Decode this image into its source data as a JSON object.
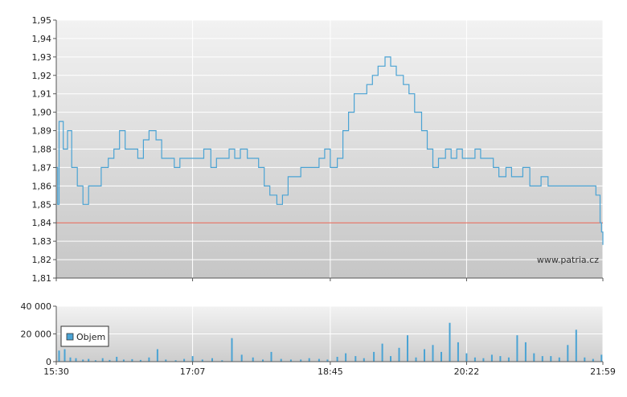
{
  "chart_data": [
    {
      "type": "line",
      "x_axis": {
        "range": [
          "15:30",
          "21:59"
        ]
      },
      "y_axis": {
        "ticks": [
          "1,81",
          "1,82",
          "1,83",
          "1,84",
          "1,85",
          "1,86",
          "1,87",
          "1,88",
          "1,89",
          "1,90",
          "1,91",
          "1,92",
          "1,93",
          "1,94",
          "1,95"
        ],
        "ylim": [
          1.81,
          1.95
        ]
      },
      "grid": true,
      "reference_line": {
        "value": 1.84,
        "color": "#e05a4a"
      },
      "watermark": "www.patria.cz",
      "series": [
        {
          "color": "#4aa3d4",
          "points": [
            [
              "15:30",
              1.87
            ],
            [
              "15:31",
              1.85
            ],
            [
              "15:32",
              1.895
            ],
            [
              "15:35",
              1.88
            ],
            [
              "15:38",
              1.89
            ],
            [
              "15:41",
              1.87
            ],
            [
              "15:45",
              1.86
            ],
            [
              "15:49",
              1.85
            ],
            [
              "15:53",
              1.86
            ],
            [
              "15:58",
              1.86
            ],
            [
              "16:02",
              1.87
            ],
            [
              "16:07",
              1.875
            ],
            [
              "16:11",
              1.88
            ],
            [
              "16:15",
              1.89
            ],
            [
              "16:19",
              1.88
            ],
            [
              "16:24",
              1.88
            ],
            [
              "16:28",
              1.875
            ],
            [
              "16:32",
              1.885
            ],
            [
              "16:36",
              1.89
            ],
            [
              "16:41",
              1.885
            ],
            [
              "16:45",
              1.875
            ],
            [
              "16:49",
              1.875
            ],
            [
              "16:54",
              1.87
            ],
            [
              "16:58",
              1.875
            ],
            [
              "17:02",
              1.875
            ],
            [
              "17:07",
              1.875
            ],
            [
              "17:11",
              1.875
            ],
            [
              "17:15",
              1.88
            ],
            [
              "17:20",
              1.87
            ],
            [
              "17:24",
              1.875
            ],
            [
              "17:28",
              1.875
            ],
            [
              "17:33",
              1.88
            ],
            [
              "17:37",
              1.875
            ],
            [
              "17:41",
              1.88
            ],
            [
              "17:46",
              1.875
            ],
            [
              "17:50",
              1.875
            ],
            [
              "17:54",
              1.87
            ],
            [
              "17:58",
              1.86
            ],
            [
              "18:02",
              1.855
            ],
            [
              "18:07",
              1.85
            ],
            [
              "18:11",
              1.855
            ],
            [
              "18:15",
              1.865
            ],
            [
              "18:19",
              1.865
            ],
            [
              "18:24",
              1.87
            ],
            [
              "18:28",
              1.87
            ],
            [
              "18:32",
              1.87
            ],
            [
              "18:37",
              1.875
            ],
            [
              "18:41",
              1.88
            ],
            [
              "18:45",
              1.87
            ],
            [
              "18:50",
              1.875
            ],
            [
              "18:54",
              1.89
            ],
            [
              "18:58",
              1.9
            ],
            [
              "19:02",
              1.91
            ],
            [
              "19:07",
              1.91
            ],
            [
              "19:11",
              1.915
            ],
            [
              "19:15",
              1.92
            ],
            [
              "19:19",
              1.925
            ],
            [
              "19:24",
              1.93
            ],
            [
              "19:28",
              1.925
            ],
            [
              "19:32",
              1.92
            ],
            [
              "19:37",
              1.915
            ],
            [
              "19:41",
              1.91
            ],
            [
              "19:45",
              1.9
            ],
            [
              "19:50",
              1.89
            ],
            [
              "19:54",
              1.88
            ],
            [
              "19:58",
              1.87
            ],
            [
              "20:02",
              1.875
            ],
            [
              "20:07",
              1.88
            ],
            [
              "20:11",
              1.875
            ],
            [
              "20:15",
              1.88
            ],
            [
              "20:19",
              1.875
            ],
            [
              "20:24",
              1.875
            ],
            [
              "20:28",
              1.88
            ],
            [
              "20:32",
              1.875
            ],
            [
              "20:37",
              1.875
            ],
            [
              "20:41",
              1.87
            ],
            [
              "20:45",
              1.865
            ],
            [
              "20:50",
              1.87
            ],
            [
              "20:54",
              1.865
            ],
            [
              "20:58",
              1.865
            ],
            [
              "21:02",
              1.87
            ],
            [
              "21:07",
              1.86
            ],
            [
              "21:11",
              1.86
            ],
            [
              "21:15",
              1.865
            ],
            [
              "21:20",
              1.86
            ],
            [
              "21:24",
              1.86
            ],
            [
              "21:28",
              1.86
            ],
            [
              "21:33",
              1.86
            ],
            [
              "21:37",
              1.86
            ],
            [
              "21:41",
              1.86
            ],
            [
              "21:46",
              1.86
            ],
            [
              "21:50",
              1.86
            ],
            [
              "21:54",
              1.855
            ],
            [
              "21:57",
              1.84
            ],
            [
              "21:58",
              1.835
            ],
            [
              "21:59",
              1.828
            ]
          ]
        }
      ]
    },
    {
      "type": "bar",
      "x_axis": {
        "ticks": [
          "15:30",
          "17:07",
          "18:45",
          "20:22",
          "21:59"
        ],
        "range": [
          "15:30",
          "21:59"
        ]
      },
      "y_axis": {
        "ticks": [
          "0",
          "20 000",
          "40 000"
        ],
        "ylim": [
          0,
          40000
        ]
      },
      "grid": true,
      "legend": {
        "position": "top-left",
        "label": "Objem",
        "swatch": "#4aa3d4"
      },
      "series": [
        {
          "name": "Objem",
          "color": "#4aa3d4",
          "points": [
            [
              "15:32",
              8000
            ],
            [
              "15:36",
              9000
            ],
            [
              "15:40",
              3000
            ],
            [
              "15:44",
              2500
            ],
            [
              "15:49",
              1500
            ],
            [
              "15:53",
              2000
            ],
            [
              "15:58",
              1000
            ],
            [
              "16:03",
              2500
            ],
            [
              "16:08",
              1200
            ],
            [
              "16:13",
              3500
            ],
            [
              "16:18",
              1500
            ],
            [
              "16:24",
              1800
            ],
            [
              "16:30",
              1200
            ],
            [
              "16:36",
              3000
            ],
            [
              "16:42",
              9000
            ],
            [
              "16:48",
              1500
            ],
            [
              "16:55",
              1000
            ],
            [
              "17:01",
              2000
            ],
            [
              "17:07",
              4000
            ],
            [
              "17:14",
              1500
            ],
            [
              "17:21",
              2500
            ],
            [
              "17:28",
              1000
            ],
            [
              "17:35",
              17000
            ],
            [
              "17:42",
              5000
            ],
            [
              "17:50",
              3000
            ],
            [
              "17:57",
              1500
            ],
            [
              "18:03",
              7000
            ],
            [
              "18:10",
              2000
            ],
            [
              "18:17",
              1500
            ],
            [
              "18:24",
              1500
            ],
            [
              "18:30",
              2500
            ],
            [
              "18:37",
              2000
            ],
            [
              "18:43",
              1500
            ],
            [
              "18:50",
              3500
            ],
            [
              "18:56",
              6000
            ],
            [
              "19:03",
              4000
            ],
            [
              "19:09",
              2500
            ],
            [
              "19:16",
              7000
            ],
            [
              "19:22",
              13000
            ],
            [
              "19:28",
              4000
            ],
            [
              "19:34",
              10000
            ],
            [
              "19:40",
              19000
            ],
            [
              "19:46",
              3000
            ],
            [
              "19:52",
              9000
            ],
            [
              "19:58",
              12000
            ],
            [
              "20:04",
              7000
            ],
            [
              "20:10",
              28000
            ],
            [
              "20:16",
              14000
            ],
            [
              "20:22",
              6000
            ],
            [
              "20:28",
              3000
            ],
            [
              "20:34",
              2500
            ],
            [
              "20:40",
              5000
            ],
            [
              "20:46",
              4000
            ],
            [
              "20:52",
              3000
            ],
            [
              "20:58",
              19000
            ],
            [
              "21:04",
              14000
            ],
            [
              "21:10",
              6000
            ],
            [
              "21:16",
              4000
            ],
            [
              "21:22",
              4000
            ],
            [
              "21:28",
              3000
            ],
            [
              "21:34",
              12000
            ],
            [
              "21:40",
              23000
            ],
            [
              "21:46",
              3000
            ],
            [
              "21:52",
              2000
            ],
            [
              "21:58",
              5000
            ]
          ]
        }
      ]
    }
  ]
}
